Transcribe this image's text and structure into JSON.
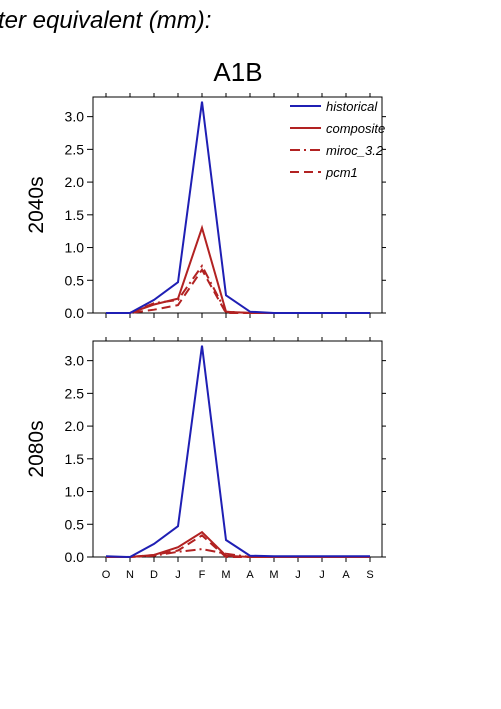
{
  "header": {
    "text": "ter equivalent (mm):"
  },
  "chart_data": {
    "type": "line",
    "title": "A1B",
    "months": [
      "O",
      "N",
      "D",
      "J",
      "F",
      "M",
      "A",
      "M",
      "J",
      "J",
      "A",
      "S"
    ],
    "ylim": [
      0,
      3.3
    ],
    "yticks": [
      "0.0",
      "0.5",
      "1.0",
      "1.5",
      "2.0",
      "2.5",
      "3.0"
    ],
    "legend": {
      "placement": "top-right",
      "entries": [
        {
          "name": "historical",
          "color": "#1f1fb4",
          "dash": "solid"
        },
        {
          "name": "composite",
          "color": "#b22222",
          "dash": "solid"
        },
        {
          "name": "miroc_3.2",
          "color": "#b22222",
          "dash": "dashdot"
        },
        {
          "name": "pcm1",
          "color": "#b22222",
          "dash": "dashed"
        }
      ]
    },
    "panels": [
      {
        "ylabel": "2040s",
        "series": [
          {
            "name": "historical",
            "values": [
              0.0,
              0.0,
              0.2,
              0.47,
              3.23,
              0.27,
              0.02,
              0.0,
              0.0,
              0.0,
              0.0,
              0.0
            ]
          },
          {
            "name": "composite",
            "values": [
              0.0,
              0.0,
              0.13,
              0.22,
              1.3,
              0.02,
              0.0,
              0.0,
              0.0,
              0.0,
              0.0,
              0.0
            ]
          },
          {
            "name": "miroc_3.2",
            "values": [
              0.0,
              0.0,
              0.15,
              0.2,
              0.72,
              0.02,
              0.0,
              0.0,
              0.0,
              0.0,
              0.0,
              0.0
            ]
          },
          {
            "name": "pcm1",
            "values": [
              0.0,
              0.0,
              0.05,
              0.12,
              0.66,
              0.0,
              0.0,
              0.0,
              0.0,
              0.0,
              0.0,
              0.0
            ]
          }
        ]
      },
      {
        "ylabel": "2080s",
        "series": [
          {
            "name": "historical",
            "values": [
              0.01,
              0.0,
              0.2,
              0.47,
              3.23,
              0.26,
              0.02,
              0.01,
              0.01,
              0.01,
              0.01,
              0.01
            ]
          },
          {
            "name": "composite",
            "values": [
              0.0,
              0.0,
              0.03,
              0.15,
              0.38,
              0.02,
              0.0,
              0.0,
              0.0,
              0.0,
              0.0,
              0.0
            ]
          },
          {
            "name": "miroc_3.2",
            "values": [
              0.0,
              0.0,
              0.02,
              0.08,
              0.12,
              0.05,
              0.0,
              0.0,
              0.0,
              0.0,
              0.0,
              0.0
            ]
          },
          {
            "name": "pcm1",
            "values": [
              0.0,
              0.0,
              0.03,
              0.1,
              0.33,
              0.0,
              0.0,
              0.0,
              0.0,
              0.0,
              0.0,
              0.0
            ]
          }
        ]
      }
    ]
  }
}
